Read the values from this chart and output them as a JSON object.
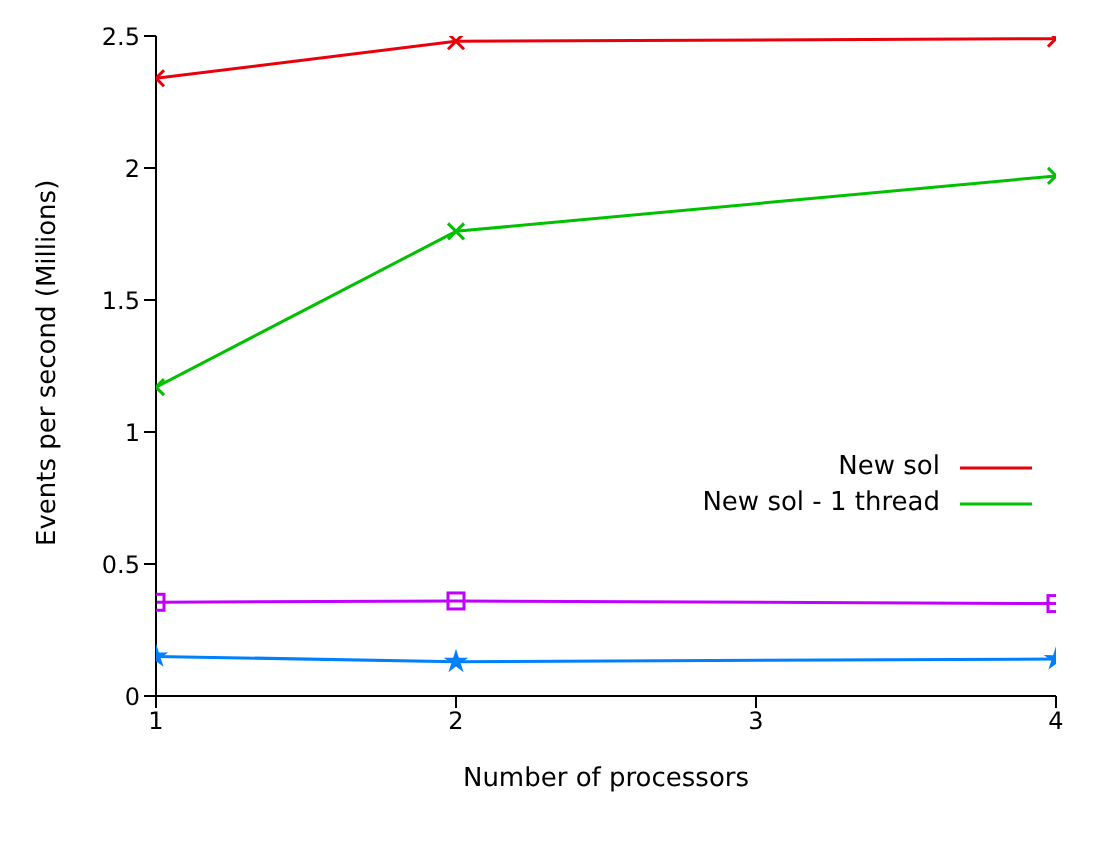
{
  "chart_data": {
    "type": "line",
    "xlabel": "Number of processors",
    "ylabel": "Events per second (Millions)",
    "x": [
      1,
      2,
      4
    ],
    "series": [
      {
        "name": "New sol",
        "color": "#e8000b",
        "values": [
          2.34,
          2.48,
          2.49
        ],
        "marker": "cross"
      },
      {
        "name": "New sol - 1 thread",
        "color": "#00c000",
        "values": [
          1.17,
          1.76,
          1.97
        ],
        "marker": "cross"
      },
      {
        "color": "#0080ff",
        "values": [
          0.15,
          0.13,
          0.14
        ],
        "marker": "star"
      },
      {
        "color": "#c000ff",
        "values": [
          0.355,
          0.36,
          0.35
        ],
        "marker": "square"
      }
    ],
    "xlim": [
      1,
      4
    ],
    "xticks": [
      1,
      2,
      3,
      4
    ],
    "ylim": [
      0,
      2.5
    ],
    "yticks": [
      0,
      0.5,
      1,
      1.5,
      2,
      2.5
    ],
    "grid": false,
    "legend": "right"
  }
}
